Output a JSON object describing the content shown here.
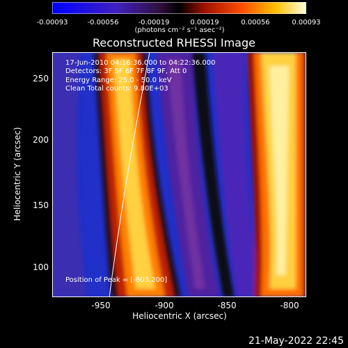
{
  "colorbar": {
    "ticks": [
      "-0.00093",
      "-0.00056",
      "-0.00019",
      "0.00019",
      "0.00056",
      "0.00093"
    ],
    "unit": "(photons cm⁻² s⁻¹ asec⁻²)"
  },
  "title": "Reconstructed RHESSI Image",
  "annotations": {
    "line1": "17-Jun-2010 04:16:36.000 to 04:22:36.000",
    "line2": "Detectors: 3F 5F 6F 7F 8F 9F, Att 0",
    "line3": "Energy Range: 25.0 - 50.0 keV",
    "line4": "Clean    Total counts: 9.80E+03",
    "peak": "Position of Peak = [-803,200]"
  },
  "axes": {
    "xlabel": "Heliocentric X (arcsec)",
    "ylabel": "Heliocentric Y (arcsec)",
    "xticks": [
      "-950",
      "-900",
      "-850",
      "-800"
    ],
    "yticks": [
      "250",
      "200",
      "150",
      "100"
    ],
    "xrange": [
      -988,
      -788
    ],
    "yrange": [
      78,
      270
    ]
  },
  "timestamp": "21-May-2022 22:45",
  "colors": {
    "background": "#000000",
    "foreground": "#ffffff"
  }
}
